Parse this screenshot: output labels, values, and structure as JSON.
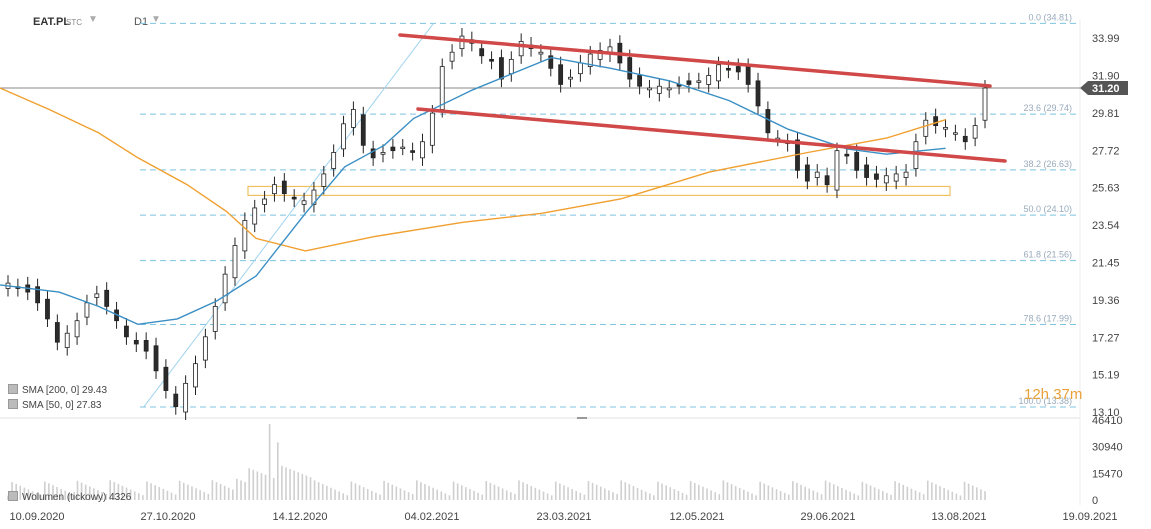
{
  "toolbar": {
    "symbol": "EAT.PL",
    "chart_type": "STC",
    "interval": "D1"
  },
  "legend": {
    "sma200_label": "SMA [200, 0] 29.43",
    "sma50_label": "SMA [50, 0] 27.83",
    "volume_label": "Wolumen (tickowy) 4326"
  },
  "timer": "12h 37m",
  "colors": {
    "up_candle": "#ffffff",
    "down_candle": "#2b2b2b",
    "sma200": "#f0a030",
    "sma50": "#3a8fc4",
    "trendline": "#d04848",
    "fib_line": "#7ec4e0",
    "support_box": "#f0c060",
    "price_tag": "#555555"
  },
  "chart_data": {
    "type": "candlestick",
    "price_axis": {
      "ticks": [
        33.99,
        31.9,
        29.81,
        27.72,
        25.63,
        23.54,
        21.45,
        19.36,
        17.27,
        15.19,
        13.1
      ],
      "ylim": [
        13.1,
        35.0
      ]
    },
    "volume_axis": {
      "ticks": [
        46410,
        30940,
        15470,
        0
      ]
    },
    "x_axis": {
      "tick_labels": [
        "10.09.2020",
        "27.10.2020",
        "14.12.2020",
        "04.02.2021",
        "23.03.2021",
        "12.05.2021",
        "29.06.2021",
        "13.08.2021",
        "19.09.2021"
      ]
    },
    "last_price": 31.2,
    "fibonacci": [
      {
        "label": "0.0 (34.81)",
        "value": 34.81
      },
      {
        "label": "23.6 (29.74)",
        "value": 29.74
      },
      {
        "label": "38.2 (26.63)",
        "value": 26.63
      },
      {
        "label": "50.0 (24.10)",
        "value": 24.1
      },
      {
        "label": "61.8 (21.56)",
        "value": 21.56
      },
      {
        "label": "78.6 (17.99)",
        "value": 17.99
      },
      {
        "label": "100.0 (13.38)",
        "value": 13.38
      }
    ],
    "ohlc_path": {
      "closes": [
        20.3,
        20.0,
        19.8,
        19.2,
        18.3,
        17.0,
        17.5,
        18.2,
        19.2,
        19.7,
        19.0,
        18.2,
        17.3,
        16.9,
        16.5,
        15.4,
        14.3,
        13.4,
        14.7,
        15.8,
        17.3,
        19.0,
        20.8,
        22.4,
        23.8,
        24.5,
        25.0,
        25.8,
        25.3,
        25.0,
        24.9,
        25.5,
        26.4,
        27.6,
        29.2,
        30.0,
        28.0,
        27.3,
        27.6,
        27.7,
        27.9,
        27.6,
        28.2,
        29.8,
        32.4,
        33.2,
        34.1,
        33.7,
        33.0,
        32.7,
        31.7,
        32.8,
        33.8,
        33.4,
        33.2,
        32.3,
        31.4,
        31.8,
        32.6,
        33.1,
        33.3,
        33.5,
        32.6,
        31.7,
        31.3,
        31.2,
        31.3,
        31.2,
        31.3,
        31.4,
        31.6,
        31.9,
        32.5,
        32.2,
        32.1,
        31.4,
        30.2,
        28.7,
        28.4,
        28.1,
        26.6,
        26.0,
        26.5,
        25.8,
        27.7,
        27.4,
        26.6,
        26.2,
        26.1,
        26.3,
        26.4,
        26.5,
        28.2,
        29.4,
        29.1,
        29.0,
        28.7,
        28.2,
        29.1,
        31.2
      ],
      "volume_peak": 46410
    },
    "sma200": {
      "label": "SMA [200, 0] 29.43",
      "points": [
        [
          0.0,
          31.2
        ],
        [
          0.05,
          30.0
        ],
        [
          0.1,
          28.7
        ],
        [
          0.14,
          27.3
        ],
        [
          0.19,
          25.8
        ],
        [
          0.23,
          24.3
        ],
        [
          0.26,
          22.8
        ],
        [
          0.31,
          22.1
        ],
        [
          0.38,
          22.9
        ],
        [
          0.47,
          23.7
        ],
        [
          0.55,
          24.2
        ],
        [
          0.63,
          25.0
        ],
        [
          0.72,
          26.5
        ],
        [
          0.82,
          27.6
        ],
        [
          0.9,
          28.4
        ],
        [
          0.96,
          29.43
        ]
      ]
    },
    "sma50": {
      "label": "SMA [50, 0] 27.83",
      "points": [
        [
          0.0,
          20.2
        ],
        [
          0.06,
          19.8
        ],
        [
          0.1,
          19.0
        ],
        [
          0.14,
          18.0
        ],
        [
          0.18,
          18.3
        ],
        [
          0.22,
          19.3
        ],
        [
          0.26,
          20.7
        ],
        [
          0.31,
          24.2
        ],
        [
          0.35,
          26.8
        ],
        [
          0.39,
          28.0
        ],
        [
          0.42,
          29.5
        ],
        [
          0.48,
          31.1
        ],
        [
          0.56,
          32.9
        ],
        [
          0.62,
          32.3
        ],
        [
          0.68,
          31.6
        ],
        [
          0.74,
          30.5
        ],
        [
          0.8,
          28.9
        ],
        [
          0.86,
          27.8
        ],
        [
          0.9,
          27.5
        ],
        [
          0.96,
          27.83
        ]
      ]
    },
    "trendlines": [
      {
        "from": [
          0.0,
          34.9
        ],
        "to": [
          1.0,
          32.1
        ]
      },
      {
        "from": [
          0.0,
          30.7
        ],
        "to": [
          1.0,
          27.6
        ]
      }
    ],
    "support_zone": {
      "y_range": [
        25.2,
        25.7
      ]
    },
    "xlabel": "",
    "ylabel": ""
  }
}
